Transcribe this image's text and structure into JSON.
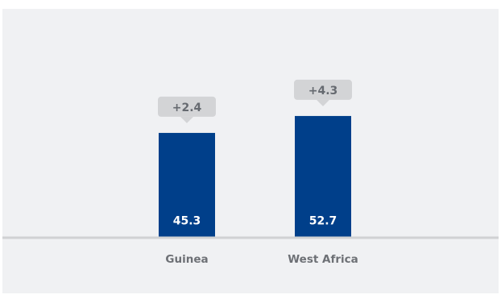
{
  "chart_data": {
    "type": "bar",
    "categories": [
      "Guinea",
      "West Africa"
    ],
    "values": [
      45.3,
      52.7
    ],
    "value_labels": [
      "45.3",
      "52.7"
    ],
    "changes": [
      "+2.4",
      "+4.3"
    ],
    "title": "",
    "xlabel": "",
    "ylabel": "",
    "ylim": [
      0,
      68
    ],
    "grid": false,
    "legend": "none",
    "colors": {
      "bar": "#003f8a",
      "callout": "#d3d4d6",
      "baseline": "#d0d1d3",
      "background": "#f0f1f3"
    }
  }
}
